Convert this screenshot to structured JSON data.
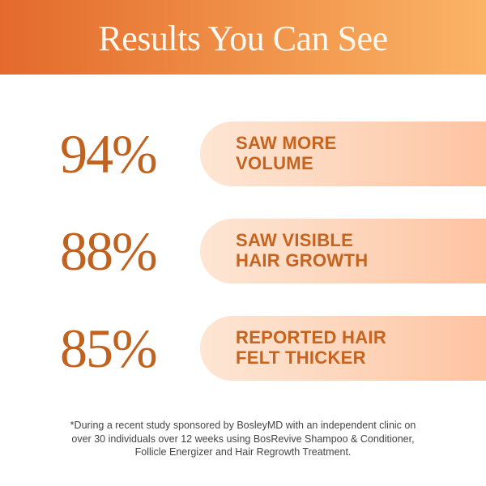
{
  "header": {
    "title": "Results You Can See"
  },
  "stats": [
    {
      "value": "94%",
      "label_line1": "SAW MORE",
      "label_line2": "VOLUME"
    },
    {
      "value": "88%",
      "label_line1": "SAW VISIBLE",
      "label_line2": "HAIR GROWTH"
    },
    {
      "value": "85%",
      "label_line1": "REPORTED HAIR",
      "label_line2": "FELT THICKER"
    }
  ],
  "footnote": {
    "line1": "*During a recent study sponsored by BosleyMD with an independent clinic on",
    "line2": "over 30 individuals over 12 weeks using BosRevive Shampoo & Conditioner,",
    "line3": "Follicle Energizer and Hair Regrowth Treatment."
  },
  "colors": {
    "accent": "#C1621F",
    "header_start": "#E36A2C",
    "header_end": "#FBB466",
    "pill": "#FDD3B8"
  }
}
